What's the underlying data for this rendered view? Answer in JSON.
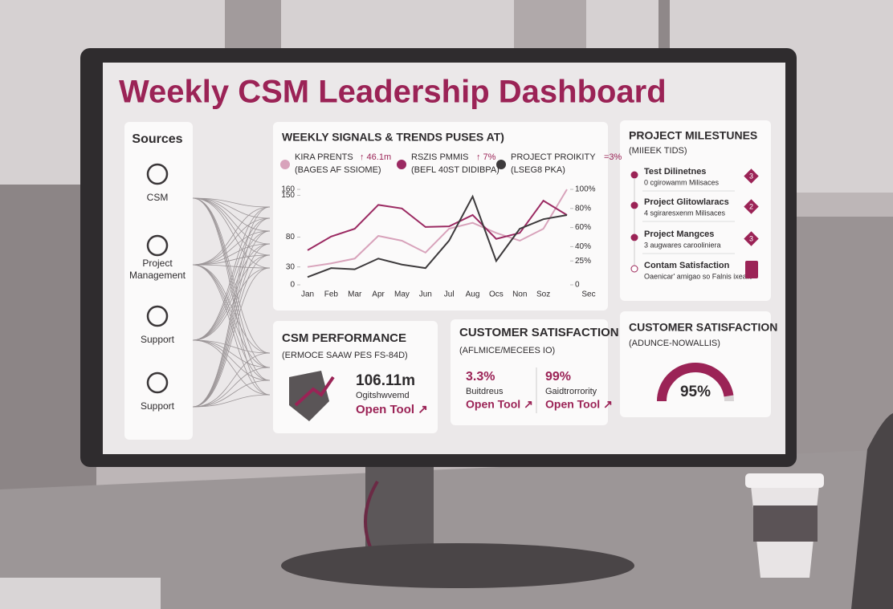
{
  "title": "Weekly CSM Leadership Dashboard",
  "sources": {
    "title": "Sources",
    "items": [
      "CSM",
      "Project\nManagement",
      "Support",
      "Support"
    ]
  },
  "signals": {
    "title": "WEEKLY SIGNALS & TRENDS PUSES AT)",
    "legend": [
      {
        "value": "↑ 46.1m",
        "sub": "(BAGES AF SSIOME)"
      },
      {
        "value": "↑ 7%",
        "sub": "(BEFL 40ST DIDIBPA)"
      },
      {
        "value": "=3%",
        "sub": "(LSEG8 PKA)"
      }
    ]
  },
  "chart_data": {
    "type": "line",
    "categories": [
      "Jan",
      "Feb",
      "Mar",
      "Apr",
      "May",
      "Jun",
      "Jul",
      "Aug",
      "Ocs",
      "Non",
      "Soz",
      "Sec"
    ],
    "series": [
      {
        "name": "KIRA PRENTS",
        "color": "#d8a3bb",
        "values": [
          30,
          36,
          44,
          82,
          74,
          54,
          94,
          104,
          87,
          74,
          94,
          160
        ]
      },
      {
        "name": "RSZIS PMMIS",
        "color": "#9b2a62",
        "values": [
          58,
          81,
          94,
          134,
          128,
          97,
          98,
          117,
          77,
          87,
          141,
          117
        ]
      },
      {
        "name": "PROJECT PROIKITY",
        "color": "#3d3a3c",
        "values": [
          13,
          28,
          26,
          44,
          34,
          28,
          74,
          148,
          40,
          94,
          110,
          117
        ]
      }
    ],
    "ylim": [
      0,
      160
    ],
    "yticks": [
      160,
      150,
      80,
      30,
      0
    ],
    "y2lim": [
      0,
      100
    ],
    "y2ticks": [
      {
        "value": 100,
        "label": "100%"
      },
      {
        "value": 80,
        "label": "80%"
      },
      {
        "value": 60,
        "label": "60%"
      },
      {
        "value": 40,
        "label": "40%"
      },
      {
        "value": 25,
        "label": "25%"
      },
      0
    ],
    "grid": false
  },
  "milestones": {
    "title": "PROJECT MILESTUNES",
    "subtitle": "(MIIEEK TIDS)",
    "items": [
      {
        "name": "Test Dilinetnes",
        "detail": "0 cgirowamm Milisaces",
        "badge": "3"
      },
      {
        "name": "Project Glitowlaracs",
        "detail": "4 sgiraresxenm Milisaces",
        "badge": "2"
      },
      {
        "name": "Project Mangces",
        "detail": "3 augwares carooliniera",
        "badge": "3"
      },
      {
        "name": "Contam Satisfaction",
        "detail": "Oaenicar' amigao so Falnis ixeate"
      }
    ]
  },
  "performance": {
    "title": "CSM PERFORMANCE",
    "subtitle": "(ERMOCE SAAW PES FS-84D)",
    "value": "106.11m",
    "caption": "Ogitshwvemd",
    "link": "Open Tool ↗"
  },
  "satisfaction": {
    "title": "CUSTOMER SATISFACTION",
    "subtitle": "(AFLMICE/MECEES IO)",
    "metrics": [
      {
        "value": "3.3%",
        "caption": "Buitdreus",
        "link": "Open Tool ↗"
      },
      {
        "value": "99%",
        "caption": "Gaidtrorrority",
        "link": "Open Tool ↗"
      }
    ]
  },
  "gauge": {
    "title": "CUSTOMER SATISFACTION",
    "subtitle": "(ADUNCE-NOWALLIS)",
    "value": 95,
    "label": "95%"
  }
}
